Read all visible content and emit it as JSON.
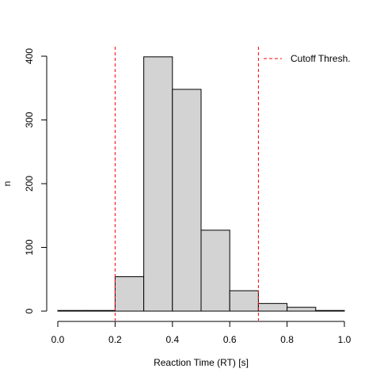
{
  "chart_data": {
    "type": "bar",
    "title": "",
    "xlabel": "Reaction Time (RT) [s]",
    "ylabel": "n",
    "bins": [
      {
        "x0": 0.0,
        "x1": 0.1,
        "count": 1
      },
      {
        "x0": 0.1,
        "x1": 0.2,
        "count": 1
      },
      {
        "x0": 0.2,
        "x1": 0.3,
        "count": 54
      },
      {
        "x0": 0.3,
        "x1": 0.4,
        "count": 399
      },
      {
        "x0": 0.4,
        "x1": 0.5,
        "count": 348
      },
      {
        "x0": 0.5,
        "x1": 0.6,
        "count": 127
      },
      {
        "x0": 0.6,
        "x1": 0.7,
        "count": 32
      },
      {
        "x0": 0.7,
        "x1": 0.8,
        "count": 12
      },
      {
        "x0": 0.8,
        "x1": 0.9,
        "count": 6
      },
      {
        "x0": 0.9,
        "x1": 1.0,
        "count": 1
      }
    ],
    "xlim": [
      0.0,
      1.0
    ],
    "ylim": [
      0,
      400
    ],
    "xticks": [
      0.0,
      0.2,
      0.4,
      0.6,
      0.8,
      1.0
    ],
    "xtick_labels": [
      "0.0",
      "0.2",
      "0.4",
      "0.6",
      "0.8",
      "1.0"
    ],
    "yticks": [
      0,
      100,
      200,
      300,
      400
    ],
    "ytick_labels": [
      "0",
      "100",
      "200",
      "300",
      "400"
    ],
    "cutoff_lines": [
      0.2,
      0.7
    ],
    "legend": {
      "label": "Cutoff Thresh.",
      "position": "top-right"
    },
    "grid": false,
    "colors": {
      "bar_fill": "#d3d3d3",
      "bar_stroke": "#000000",
      "cutoff": "#ff0000"
    }
  }
}
